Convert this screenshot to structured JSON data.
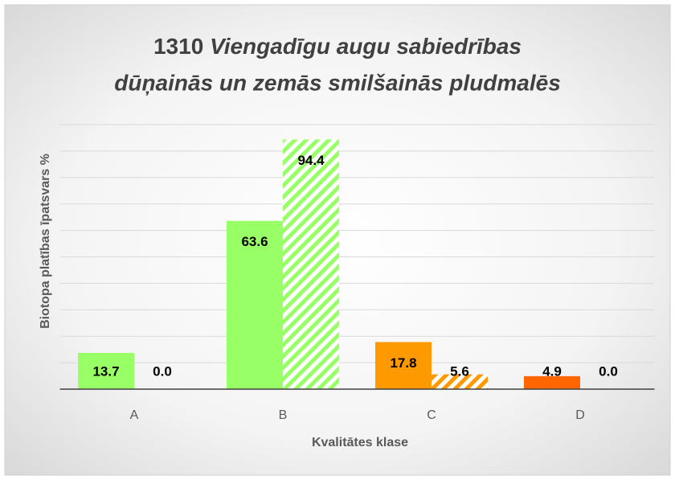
{
  "chart_data": {
    "type": "bar",
    "title": [
      "1310",
      "Viengadīgu augu sabiedrības",
      "dūņainās un zemās smilšainās pludmalēs"
    ],
    "y_label": "Biotopa platības īpatsvars %",
    "x_label": "Kvalitātes klase",
    "categories": [
      "A",
      "B",
      "C",
      "D"
    ],
    "colors": [
      "#99ff66",
      "#99ff66",
      "#ff9900",
      "#ff6600"
    ],
    "series": [
      {
        "pattern": "solid",
        "values": [
          13.7,
          63.6,
          17.8,
          4.9
        ],
        "value_labels": [
          "13.7",
          "63.6",
          "17.8",
          "4.9"
        ]
      },
      {
        "pattern": "hatch",
        "values": [
          0,
          94.4,
          5.6,
          0
        ],
        "value_labels": [
          "0.0",
          "94.4",
          "5.6",
          "0.0"
        ]
      }
    ],
    "ylim": [
      0,
      100
    ],
    "yticks": [
      0,
      10,
      20,
      30,
      40,
      50,
      60,
      70,
      80,
      90,
      100
    ],
    "grid": true
  }
}
